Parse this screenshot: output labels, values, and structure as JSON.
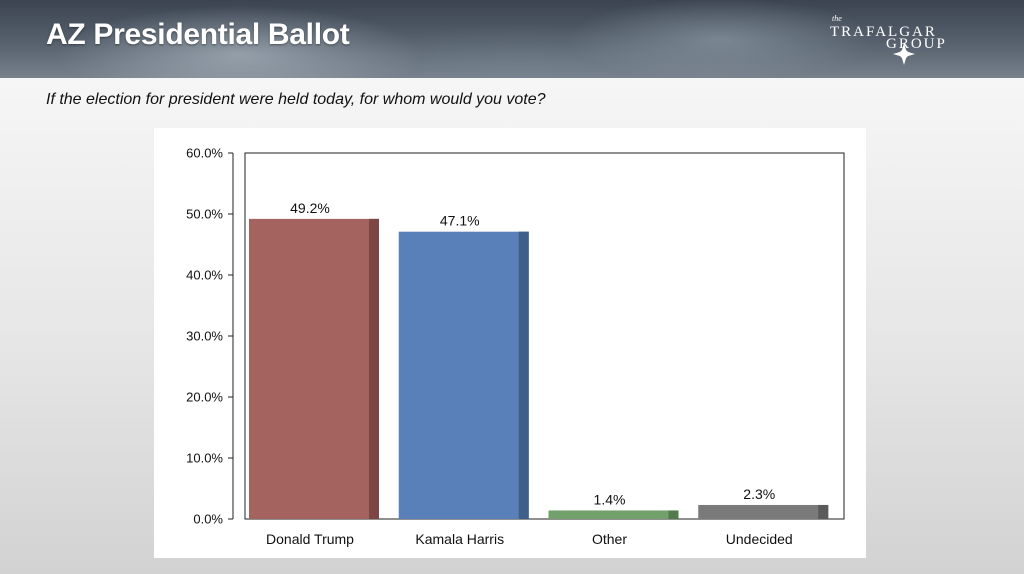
{
  "header": {
    "title": "AZ Presidential Ballot",
    "logo": {
      "small_text": "the",
      "line1": "TRAFALGAR",
      "line2": "GROUP",
      "icon": "compass-star-icon"
    }
  },
  "question": "If the election for president were held today, for whom would you vote?",
  "chart_data": {
    "type": "bar",
    "categories": [
      "Donald Trump",
      "Kamala Harris",
      "Other",
      "Undecided"
    ],
    "values": [
      49.2,
      47.1,
      1.4,
      2.3
    ],
    "data_labels": [
      "49.2%",
      "47.1%",
      "1.4%",
      "2.3%"
    ],
    "colors": [
      "#a5635f",
      "#5a80b9",
      "#72a06a",
      "#7a7a7a"
    ],
    "side_colors": [
      "#7c4645",
      "#3f5e89",
      "#527a4c",
      "#5a5a5a"
    ],
    "yticks": [
      "0.0%",
      "10.0%",
      "20.0%",
      "30.0%",
      "40.0%",
      "50.0%",
      "60.0%"
    ],
    "ylim": [
      0,
      60
    ],
    "title": "",
    "xlabel": "",
    "ylabel": "",
    "grid": false,
    "legend": "none"
  }
}
